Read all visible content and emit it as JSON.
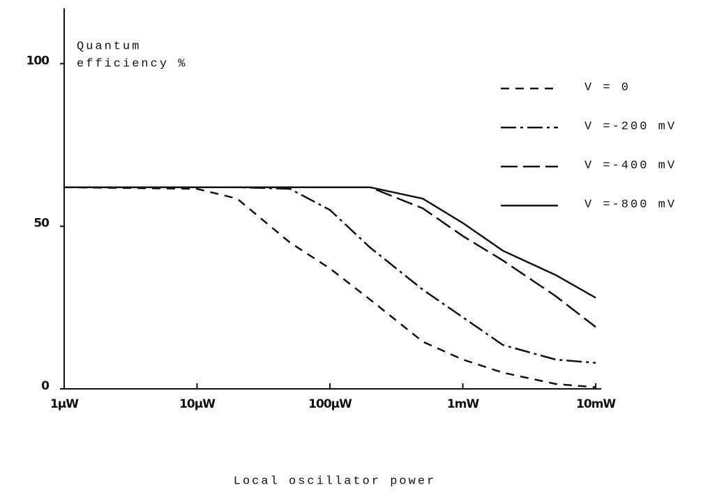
{
  "chart_data": {
    "type": "line",
    "ylabel": [
      "Quantum",
      "efficiency %"
    ],
    "xlabel": "Local oscillator power",
    "log_x": true,
    "xlim": [
      1,
      11000
    ],
    "ylim": [
      0,
      117
    ],
    "xticks": [
      {
        "value": 1,
        "label": "1µW"
      },
      {
        "value": 10,
        "label": "10µW"
      },
      {
        "value": 100,
        "label": "100µW"
      },
      {
        "value": 1000,
        "label": "1mW"
      },
      {
        "value": 10000,
        "label": "10mW"
      }
    ],
    "yticks": [
      0,
      50,
      100
    ],
    "x": [
      1,
      10,
      20,
      50,
      100,
      200,
      500,
      1000,
      2000,
      5000,
      10000
    ],
    "series": [
      {
        "name": "V = 0",
        "color": "#111111",
        "style": "dashed",
        "values": [
          62,
          61.5,
          58.5,
          45,
          37,
          27.5,
          14.5,
          9,
          5,
          1.5,
          0.5
        ]
      },
      {
        "name": "V =-200 mV",
        "color": "#111111",
        "style": "dashdot",
        "values": [
          62,
          62,
          62,
          61.5,
          55,
          43.5,
          30.5,
          22,
          13.5,
          9,
          8
        ]
      },
      {
        "name": "V =-400 mV",
        "color": "#111111",
        "style": "longdash",
        "values": [
          62,
          62,
          62,
          62,
          62,
          62,
          55.5,
          47,
          39.5,
          28.5,
          19
        ]
      },
      {
        "name": "V =-800 mV",
        "color": "#111111",
        "style": "solid",
        "values": [
          62,
          62,
          62,
          62,
          62,
          62,
          58.5,
          51,
          42.5,
          35,
          28
        ]
      }
    ]
  }
}
